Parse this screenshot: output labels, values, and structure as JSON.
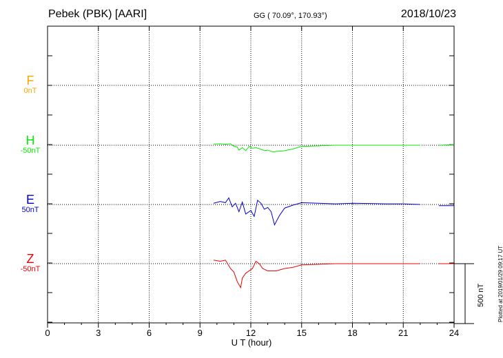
{
  "header": {
    "station": "Pebek (PBK)  [AARI]",
    "coordinates": "GG ( 70.09°, 170.93°)",
    "date": "2018/10/23"
  },
  "footer": {
    "plotted": "Plotted at 2019/01/29 09:17 UT"
  },
  "scale_bar": {
    "label": "500 nT",
    "value_nT": 500
  },
  "chart_data": {
    "type": "line",
    "xlabel": "U T (hour)",
    "xlim": [
      0,
      24
    ],
    "xticks": [
      0,
      3,
      6,
      9,
      12,
      15,
      18,
      21,
      24
    ],
    "grid": true,
    "data_gap": [
      22,
      23.1
    ],
    "series": [
      {
        "name": "F",
        "baseline": "0nT",
        "color": "#ffa500",
        "x": [],
        "y": []
      },
      {
        "name": "H",
        "baseline": "-50nT",
        "color": "#00ee00",
        "x": [
          9.8,
          10.2,
          10.5,
          10.8,
          11.0,
          11.2,
          11.3,
          11.5,
          11.7,
          11.9,
          12.1,
          12.3,
          12.5,
          12.8,
          13.0,
          13.3,
          13.6,
          14.0,
          14.5,
          15.0,
          16.0,
          17.0,
          18.0,
          19.0,
          20.0,
          21.0,
          22.0,
          23.1,
          24.0
        ],
        "y": [
          10,
          12,
          8,
          12,
          -8,
          -15,
          -40,
          -20,
          -45,
          -10,
          -25,
          -20,
          -28,
          -45,
          -40,
          -55,
          -50,
          -45,
          -30,
          -10,
          -5,
          0,
          0,
          0,
          0,
          0,
          0,
          0,
          5
        ]
      },
      {
        "name": "E",
        "baseline": "50nT",
        "color": "#0000cc",
        "x": [
          9.8,
          10.2,
          10.5,
          10.7,
          10.9,
          11.1,
          11.3,
          11.5,
          11.7,
          12.0,
          12.2,
          12.4,
          12.6,
          12.8,
          13.0,
          13.2,
          13.4,
          13.7,
          14.0,
          14.5,
          15.0,
          16.0,
          17.0,
          18.0,
          19.0,
          20.0,
          21.0,
          22.0,
          23.1,
          24.0
        ],
        "y": [
          10,
          25,
          15,
          55,
          -20,
          10,
          -60,
          20,
          -80,
          -50,
          -100,
          35,
          10,
          -40,
          -25,
          -60,
          -170,
          -90,
          -30,
          -5,
          15,
          10,
          5,
          10,
          8,
          5,
          5,
          0,
          -10,
          -10
        ]
      },
      {
        "name": "Z",
        "baseline": "-50nT",
        "color": "#ee0000",
        "x": [
          9.8,
          10.2,
          10.5,
          10.8,
          11.0,
          11.2,
          11.4,
          11.5,
          11.7,
          11.9,
          12.1,
          12.3,
          12.5,
          12.7,
          13.0,
          13.5,
          14.0,
          14.5,
          15.0,
          16.0,
          17.0,
          18.0,
          19.0,
          20.0,
          21.0,
          22.0,
          23.1,
          24.0
        ],
        "y": [
          30,
          20,
          30,
          -40,
          -70,
          -150,
          -200,
          -120,
          -80,
          -60,
          -40,
          20,
          0,
          -40,
          -60,
          -60,
          -40,
          -30,
          -10,
          -5,
          0,
          0,
          0,
          0,
          0,
          0,
          0,
          0
        ]
      }
    ]
  }
}
